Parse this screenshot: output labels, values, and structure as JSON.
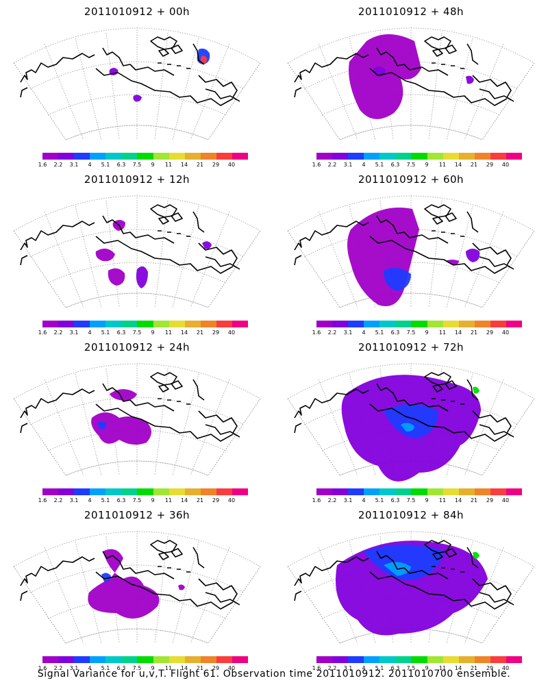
{
  "panels": [
    {
      "title": "2011010912 + 00h"
    },
    {
      "title": "2011010912 + 48h"
    },
    {
      "title": "2011010912 + 12h"
    },
    {
      "title": "2011010912 + 60h"
    },
    {
      "title": "2011010912 + 24h"
    },
    {
      "title": "2011010912 + 72h"
    },
    {
      "title": "2011010912 + 36h"
    },
    {
      "title": "2011010912 + 84h"
    }
  ],
  "colorbar": {
    "ticks": [
      "1.6",
      "2.2",
      "3.1",
      "4",
      "5.1",
      "6.3",
      "7.5",
      "9",
      "11",
      "14",
      "21",
      "29",
      "40"
    ],
    "colors": [
      "#a000c8",
      "#8200dc",
      "#1e3cff",
      "#00a0ff",
      "#00c8c8",
      "#00d28c",
      "#00dc00",
      "#a0e632",
      "#e6dc32",
      "#e6af2d",
      "#f08228",
      "#fa3c3c",
      "#f00082"
    ]
  },
  "caption": "Signal Variance for u,v,T. Flight 61. Observation time 2011010912. 2011010700 ensemble."
}
